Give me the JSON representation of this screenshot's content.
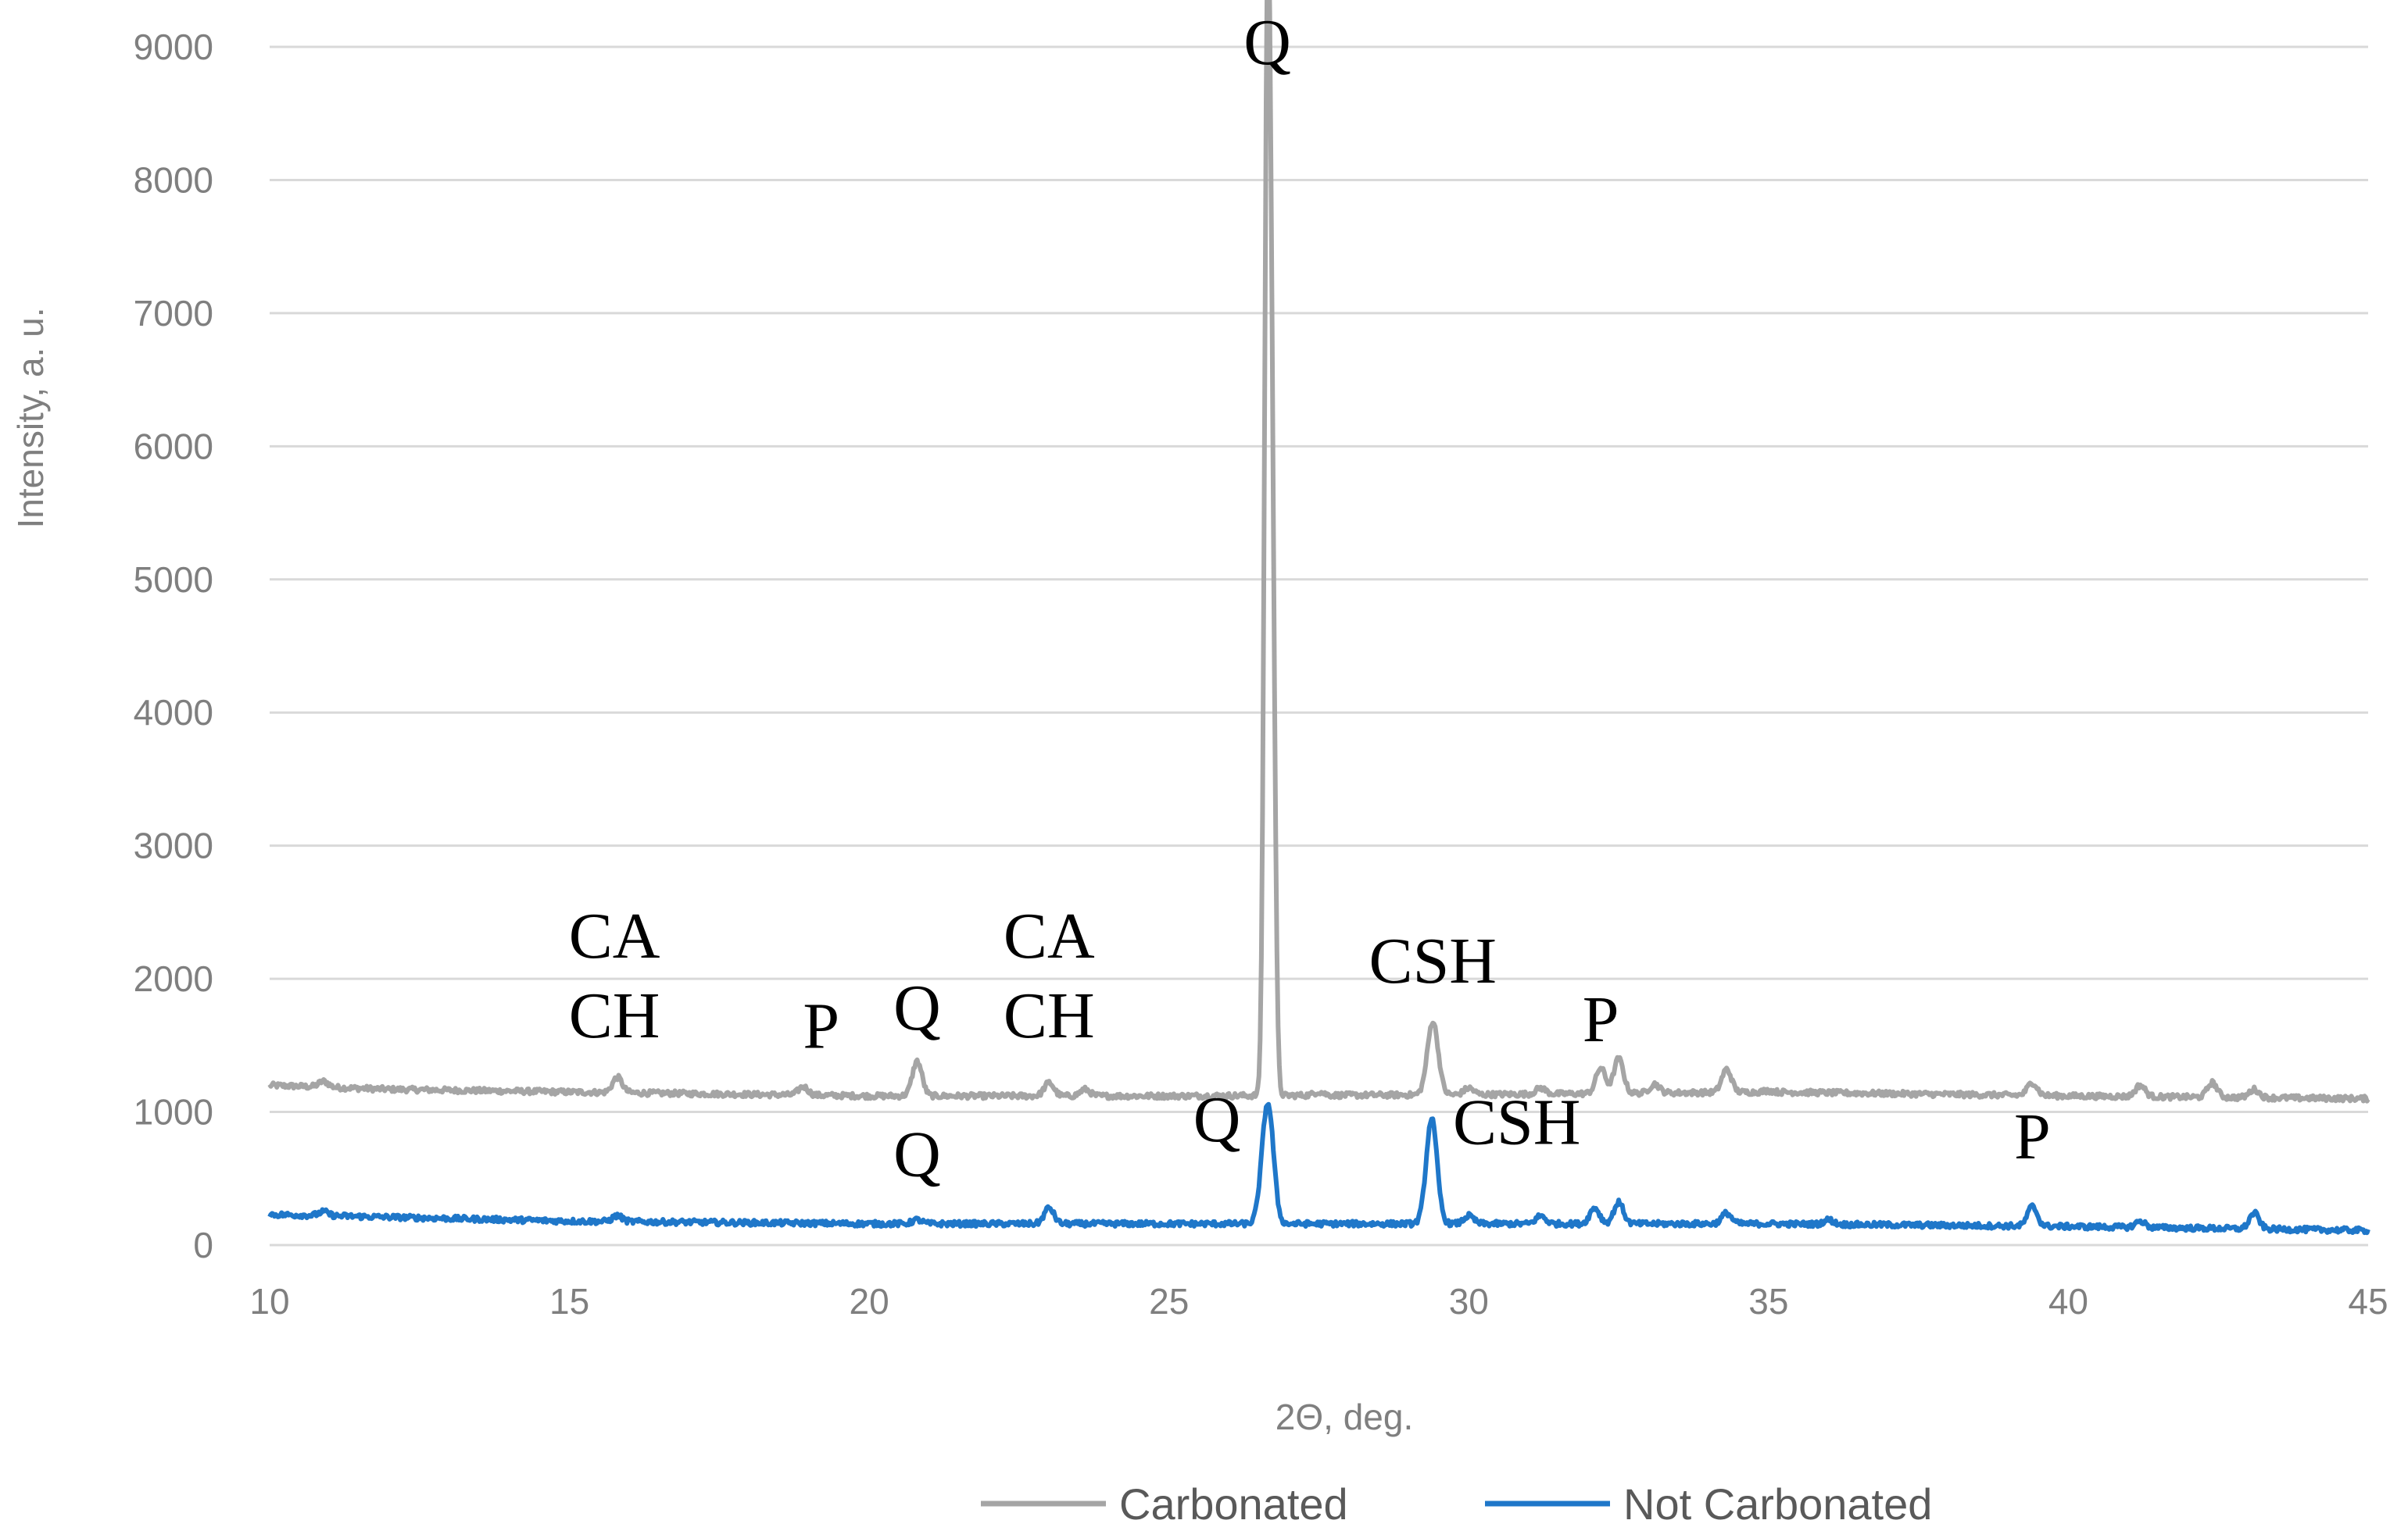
{
  "chart_data": {
    "type": "line",
    "title": "",
    "xlabel": "2Θ, deg.",
    "ylabel": "Intensity, a. u.",
    "xlim": [
      10,
      45
    ],
    "ylim": [
      0,
      9000
    ],
    "x_ticks": [
      10,
      15,
      20,
      25,
      30,
      35,
      40,
      45
    ],
    "y_ticks": [
      0,
      1000,
      2000,
      3000,
      4000,
      5000,
      6000,
      7000,
      8000,
      9000
    ],
    "grid": "horizontal",
    "legend_position": "bottom",
    "series": [
      {
        "name": "Carbonated",
        "color": "#a5a5a5",
        "baseline": [
          [
            10,
            1200
          ],
          [
            12,
            1170
          ],
          [
            15,
            1150
          ],
          [
            20,
            1120
          ],
          [
            25,
            1120
          ],
          [
            30,
            1130
          ],
          [
            35,
            1150
          ],
          [
            40,
            1120
          ],
          [
            45,
            1100
          ]
        ],
        "peaks": [
          [
            10.9,
            1230
          ],
          [
            15.8,
            1260
          ],
          [
            18.9,
            1190
          ],
          [
            20.8,
            1380
          ],
          [
            23.0,
            1220
          ],
          [
            23.6,
            1170
          ],
          [
            26.64,
            8650
          ],
          [
            26.72,
            4800
          ],
          [
            27.5,
            1150
          ],
          [
            29.4,
            1680
          ],
          [
            30.0,
            1180
          ],
          [
            31.2,
            1180
          ],
          [
            32.2,
            1330
          ],
          [
            32.5,
            1400
          ],
          [
            33.1,
            1210
          ],
          [
            34.3,
            1320
          ],
          [
            35.0,
            1160
          ],
          [
            39.4,
            1220
          ],
          [
            41.2,
            1200
          ],
          [
            42.4,
            1220
          ],
          [
            43.1,
            1170
          ]
        ]
      },
      {
        "name": "Not Carbonated",
        "color": "#1f77c9",
        "baseline": [
          [
            10,
            230
          ],
          [
            12,
            210
          ],
          [
            15,
            180
          ],
          [
            20,
            160
          ],
          [
            25,
            160
          ],
          [
            30,
            160
          ],
          [
            35,
            160
          ],
          [
            40,
            140
          ],
          [
            45,
            110
          ]
        ],
        "peaks": [
          [
            10.9,
            250
          ],
          [
            15.8,
            220
          ],
          [
            20.8,
            190
          ],
          [
            23.0,
            280
          ],
          [
            26.62,
            840
          ],
          [
            26.7,
            480
          ],
          [
            29.38,
            950
          ],
          [
            30.0,
            220
          ],
          [
            31.2,
            220
          ],
          [
            32.1,
            280
          ],
          [
            32.5,
            320
          ],
          [
            34.3,
            240
          ],
          [
            36.0,
            190
          ],
          [
            39.4,
            290
          ],
          [
            41.2,
            180
          ],
          [
            43.1,
            240
          ]
        ]
      }
    ],
    "annotations": [
      {
        "text": "Q",
        "x": 26.64,
        "y": 8870
      },
      {
        "text": "CA",
        "x": 15.75,
        "y": 2160
      },
      {
        "text": "CH",
        "x": 15.75,
        "y": 1560
      },
      {
        "text": "P",
        "x": 19.2,
        "y": 1480
      },
      {
        "text": "Q",
        "x": 20.8,
        "y": 1620
      },
      {
        "text": "CA",
        "x": 23.0,
        "y": 2160
      },
      {
        "text": "CH",
        "x": 23.0,
        "y": 1560
      },
      {
        "text": "CSH",
        "x": 29.4,
        "y": 1970
      },
      {
        "text": "P",
        "x": 32.2,
        "y": 1530
      },
      {
        "text": "Q",
        "x": 25.8,
        "y": 780
      },
      {
        "text": "CSH",
        "x": 30.8,
        "y": 760
      },
      {
        "text": "Q",
        "x": 20.8,
        "y": 520
      },
      {
        "text": "P",
        "x": 39.4,
        "y": 650
      }
    ]
  }
}
